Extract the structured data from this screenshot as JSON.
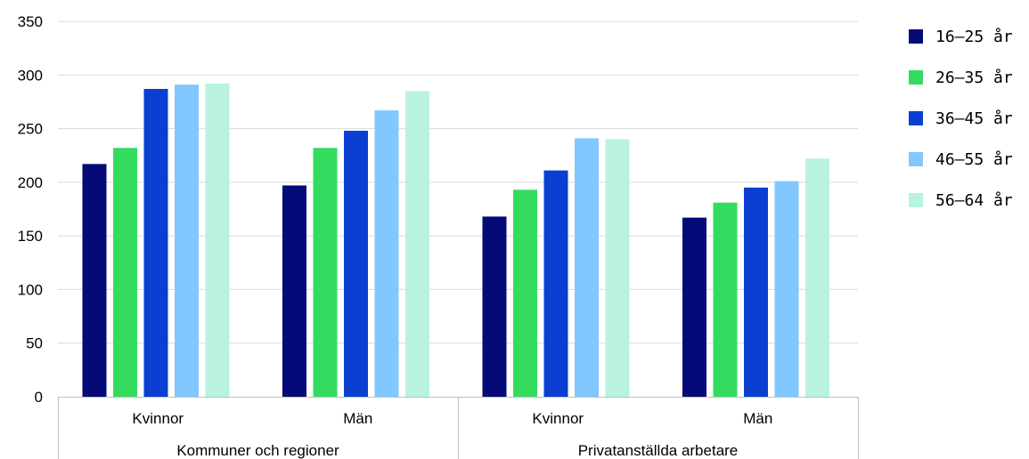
{
  "chart_data": {
    "type": "bar",
    "groups": [
      {
        "label": "Kommuner och regioner",
        "categories": [
          "Kvinnor",
          "Män"
        ]
      },
      {
        "label": "Privatanställda arbetare",
        "categories": [
          "Kvinnor",
          "Män"
        ]
      }
    ],
    "categories": [
      "Kvinnor",
      "Män",
      "Kvinnor",
      "Män"
    ],
    "series": [
      {
        "name": "16–25 år",
        "color": "#050a78",
        "values": [
          217,
          197,
          168,
          167
        ]
      },
      {
        "name": "26–35 år",
        "color": "#33dc5f",
        "values": [
          232,
          232,
          193,
          181
        ]
      },
      {
        "name": "36–45 år",
        "color": "#0a3fd2",
        "values": [
          287,
          248,
          211,
          195
        ]
      },
      {
        "name": "46–55 år",
        "color": "#80c8ff",
        "values": [
          291,
          267,
          241,
          201
        ]
      },
      {
        "name": "56–64 år",
        "color": "#b9f3dd",
        "values": [
          292,
          285,
          240,
          222
        ]
      }
    ],
    "ylim": [
      0,
      350
    ],
    "yticks": [
      0,
      50,
      100,
      150,
      200,
      250,
      300,
      350
    ],
    "title": "",
    "xlabel": "",
    "ylabel": "",
    "grid": true,
    "legend_position": "right"
  }
}
